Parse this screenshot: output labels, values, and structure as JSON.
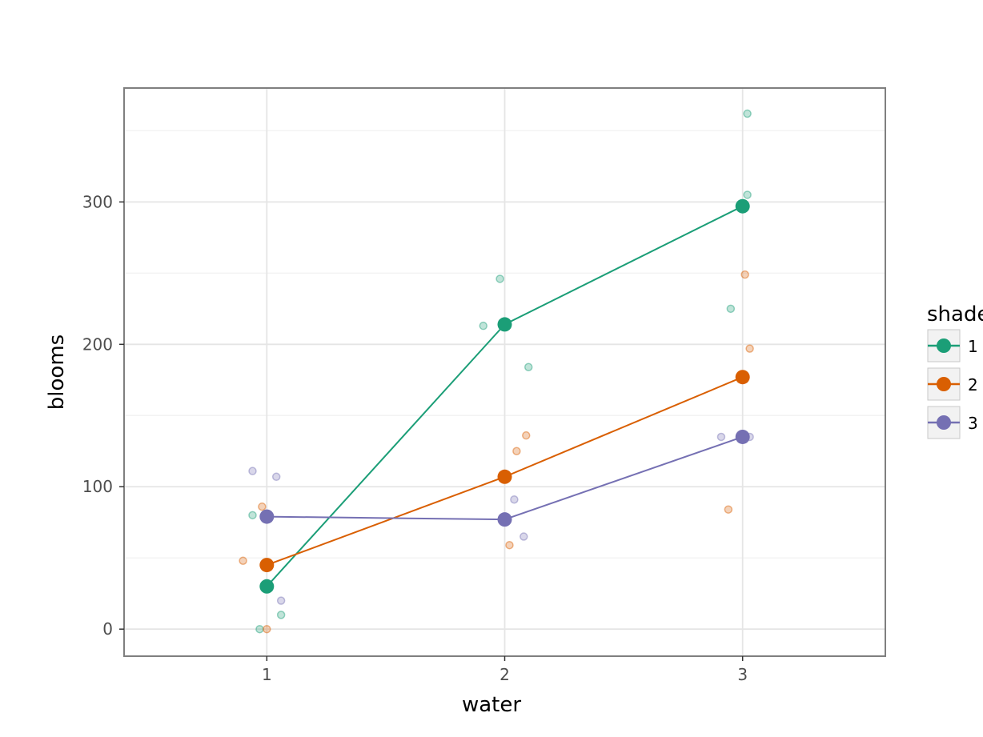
{
  "chart_data": {
    "type": "line",
    "title": "",
    "xlabel": "water",
    "ylabel": "blooms",
    "x_ticks": [
      "1",
      "2",
      "3"
    ],
    "y_ticks": [
      "0",
      "100",
      "200",
      "300"
    ],
    "xlim": [
      0.4,
      3.6
    ],
    "ylim": [
      -19,
      380
    ],
    "grid": true,
    "legend": {
      "title": "shade",
      "position": "right",
      "entries": [
        "1",
        "2",
        "3"
      ]
    },
    "series": [
      {
        "name": "1",
        "color": "#1b9e77",
        "means": [
          {
            "x": 1,
            "y": 30
          },
          {
            "x": 2,
            "y": 214
          },
          {
            "x": 3,
            "y": 297
          }
        ],
        "points": [
          {
            "x": 0.94,
            "y": 80
          },
          {
            "x": 1.06,
            "y": 10
          },
          {
            "x": 0.97,
            "y": 0
          },
          {
            "x": 1.91,
            "y": 213
          },
          {
            "x": 1.98,
            "y": 246
          },
          {
            "x": 2.1,
            "y": 184
          },
          {
            "x": 2.95,
            "y": 225
          },
          {
            "x": 3.02,
            "y": 305
          },
          {
            "x": 3.02,
            "y": 362
          }
        ]
      },
      {
        "name": "2",
        "color": "#d95f02",
        "means": [
          {
            "x": 1,
            "y": 45
          },
          {
            "x": 2,
            "y": 107
          },
          {
            "x": 3,
            "y": 177
          }
        ],
        "points": [
          {
            "x": 0.9,
            "y": 48
          },
          {
            "x": 0.98,
            "y": 86
          },
          {
            "x": 1.0,
            "y": 0
          },
          {
            "x": 2.02,
            "y": 59
          },
          {
            "x": 2.05,
            "y": 125
          },
          {
            "x": 2.09,
            "y": 136
          },
          {
            "x": 2.94,
            "y": 84
          },
          {
            "x": 3.01,
            "y": 249
          },
          {
            "x": 3.03,
            "y": 197
          }
        ]
      },
      {
        "name": "3",
        "color": "#7570b3",
        "means": [
          {
            "x": 1,
            "y": 79
          },
          {
            "x": 2,
            "y": 77
          },
          {
            "x": 3,
            "y": 135
          }
        ],
        "points": [
          {
            "x": 0.94,
            "y": 111
          },
          {
            "x": 1.04,
            "y": 107
          },
          {
            "x": 1.06,
            "y": 20
          },
          {
            "x": 2.04,
            "y": 91
          },
          {
            "x": 2.08,
            "y": 65
          },
          {
            "x": 2.91,
            "y": 135
          },
          {
            "x": 3.03,
            "y": 135
          }
        ]
      }
    ]
  }
}
